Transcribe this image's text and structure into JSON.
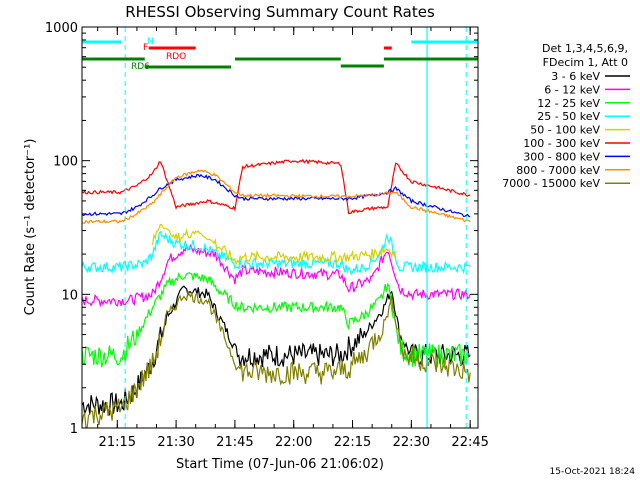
{
  "chart_data": {
    "type": "line",
    "title": "RHESSI Observing Summary Count Rates",
    "xlabel": "Start Time (07-Jun-06 21:06:02)",
    "ylabel": "Count Rate (s⁻¹ detector⁻¹)",
    "y_scale": "log",
    "ylim": [
      1,
      1000
    ],
    "xlim": [
      "21:06",
      "22:47"
    ],
    "x_ticks": [
      "21:15",
      "21:30",
      "21:45",
      "22:00",
      "22:15",
      "22:30",
      "22:45"
    ],
    "y_ticks": [
      "1",
      "10",
      "100",
      "1000"
    ],
    "legend_position": "top-right",
    "legend_header": [
      "Det 1,3,4,5,6,9,",
      "FDecim 1, Att 0"
    ],
    "timestamp": "15-Oct-2021 18:24",
    "colors": {
      "3 - 6 keV": "#000000",
      "6 - 12 keV": "#ff00ff",
      "12 - 25 keV": "#00ff00",
      "25 - 50 keV": "#00ffff",
      "50 - 100 keV": "#d2d200",
      "100 - 300 keV": "#ff0000",
      "300 - 800 keV": "#0000ff",
      "800 - 7000 keV": "#ff8c00",
      "7000 - 15000 keV": "#808000",
      "N": "#00ffff",
      "F": "#ff0000",
      "RDO": "#ff0000",
      "RD6": "#008000"
    },
    "series": [
      {
        "name": "3 - 6 keV",
        "x": [
          "21:06",
          "21:16",
          "21:20",
          "21:24",
          "21:28",
          "21:32",
          "21:38",
          "21:42",
          "21:46",
          "21:50",
          "22:05",
          "22:12",
          "22:14",
          "22:18",
          "22:20",
          "22:23",
          "22:25",
          "22:27",
          "22:30",
          "22:40",
          "22:45"
        ],
        "y": [
          1.5,
          1.5,
          2.0,
          3.2,
          7,
          11,
          10,
          6,
          3.5,
          3.5,
          3.5,
          3.5,
          4.0,
          5.0,
          6,
          8,
          11,
          5,
          3.5,
          3.5,
          3.5
        ]
      },
      {
        "name": "6 - 12 keV",
        "x": [
          "21:06",
          "21:18",
          "21:24",
          "21:26",
          "21:28",
          "21:32",
          "21:40",
          "21:45",
          "21:47",
          "22:12",
          "22:14",
          "22:20",
          "22:24",
          "22:27",
          "22:30",
          "22:45"
        ],
        "y": [
          9,
          9,
          10,
          13,
          18,
          22,
          20,
          13,
          15,
          14,
          11,
          13,
          22,
          11,
          10,
          10
        ]
      },
      {
        "name": "12 - 25 keV",
        "x": [
          "21:06",
          "21:16",
          "21:20",
          "21:24",
          "21:28",
          "21:32",
          "21:38",
          "21:42",
          "21:46",
          "22:12",
          "22:14",
          "22:18",
          "22:22",
          "22:24",
          "22:27",
          "22:30",
          "22:45"
        ],
        "y": [
          3.5,
          3.5,
          5,
          8,
          12,
          14,
          13,
          10,
          8,
          8,
          6,
          7,
          9,
          12,
          4,
          3.5,
          3.5
        ]
      },
      {
        "name": "25 - 50 keV",
        "x": [
          "21:06",
          "21:16",
          "21:22",
          "21:24",
          "21:26",
          "21:30",
          "21:36",
          "21:42",
          "21:45",
          "21:47",
          "22:12",
          "22:14",
          "22:18",
          "22:22",
          "22:24",
          "22:27",
          "22:30",
          "22:45"
        ],
        "y": [
          16,
          16,
          17,
          20,
          28,
          24,
          23,
          19,
          17,
          17,
          17,
          15,
          16,
          20,
          28,
          16,
          16,
          16
        ]
      },
      {
        "name": "50 - 100 keV",
        "x": [
          "21:24",
          "21:26",
          "21:30",
          "21:35",
          "21:40",
          "21:45",
          "21:47",
          "22:12",
          "22:14",
          "22:20",
          "22:24",
          "22:26"
        ],
        "y": [
          24,
          34,
          26,
          30,
          24,
          18,
          19,
          19,
          19,
          20,
          22,
          20
        ]
      },
      {
        "name": "100 - 300 keV",
        "x": [
          "21:06",
          "21:16",
          "21:20",
          "21:24",
          "21:26",
          "21:30",
          "21:38",
          "21:44",
          "21:45",
          "21:47",
          "22:00",
          "22:12",
          "22:14",
          "22:20",
          "22:24",
          "22:26",
          "22:30",
          "22:45"
        ],
        "y": [
          58,
          58,
          65,
          80,
          100,
          45,
          50,
          45,
          44,
          90,
          100,
          95,
          41,
          44,
          45,
          95,
          70,
          55
        ]
      },
      {
        "name": "300 - 800 keV",
        "x": [
          "21:06",
          "21:16",
          "21:20",
          "21:24",
          "21:26",
          "21:30",
          "21:36",
          "21:40",
          "21:45",
          "21:47",
          "22:12",
          "22:14",
          "22:20",
          "22:24",
          "22:26",
          "22:30",
          "22:45"
        ],
        "y": [
          40,
          40,
          45,
          55,
          62,
          72,
          78,
          72,
          55,
          52,
          52,
          52,
          55,
          58,
          62,
          50,
          38
        ]
      },
      {
        "name": "800 - 7000 keV",
        "x": [
          "21:06",
          "21:16",
          "21:20",
          "21:24",
          "21:26",
          "21:30",
          "21:36",
          "21:40",
          "21:45",
          "21:47",
          "22:12",
          "22:14",
          "22:20",
          "22:24",
          "22:26",
          "22:30",
          "22:45"
        ],
        "y": [
          35,
          35,
          40,
          48,
          56,
          75,
          85,
          78,
          58,
          55,
          54,
          54,
          55,
          57,
          58,
          45,
          35
        ]
      },
      {
        "name": "7000 - 15000 keV",
        "x": [
          "21:06",
          "21:16",
          "21:20",
          "21:24",
          "21:28",
          "21:32",
          "21:38",
          "21:42",
          "21:46",
          "21:50",
          "22:10",
          "22:14",
          "22:18",
          "22:23",
          "22:25",
          "22:28",
          "22:45"
        ],
        "y": [
          1.2,
          1.4,
          2.0,
          3.0,
          7,
          10,
          9,
          5,
          2.7,
          2.6,
          2.6,
          2.8,
          3.5,
          6,
          9,
          3.5,
          2.6
        ]
      }
    ],
    "annotations": [
      {
        "label": "N",
        "start": "21:06",
        "end": "21:17"
      },
      {
        "label": "F",
        "start": "21:23",
        "end": "21:35"
      },
      {
        "label": "RDO",
        "start": "21:23",
        "end": "21:35"
      },
      {
        "label": "RD6",
        "start": "21:06",
        "end": "21:44"
      }
    ]
  }
}
